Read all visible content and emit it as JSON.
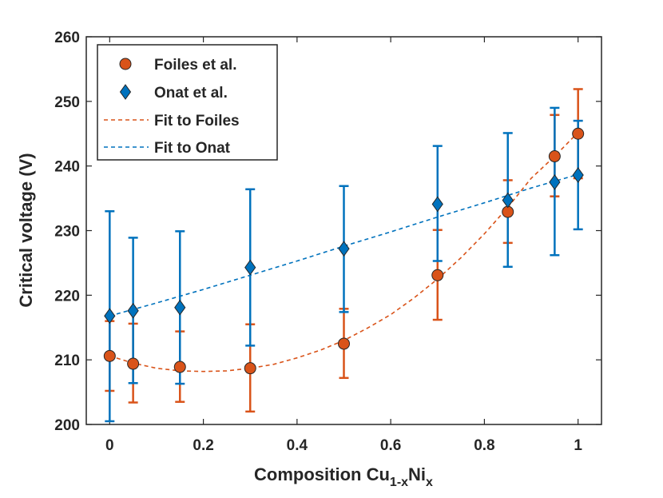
{
  "chart_data": {
    "type": "scatter",
    "title": "",
    "xlabel": "Composition Cu",
    "xlabel_sub1": "1-x",
    "xlabel_mid": "Ni",
    "xlabel_sub2": "x",
    "ylabel": "Critical voltage (V)",
    "xlim": [
      -0.05,
      1.05
    ],
    "ylim": [
      200,
      260
    ],
    "xticks": [
      0,
      0.2,
      0.4,
      0.6,
      0.8,
      1
    ],
    "xtick_labels": [
      "0",
      "0.2",
      "0.4",
      "0.6",
      "0.8",
      "1"
    ],
    "yticks": [
      200,
      210,
      220,
      230,
      240,
      250,
      260
    ],
    "ytick_labels": [
      "200",
      "210",
      "220",
      "230",
      "240",
      "250",
      "260"
    ],
    "legend_position": "top-left",
    "series": [
      {
        "name": "Foiles et al.",
        "marker": "circle",
        "color": "#D95319",
        "x": [
          0,
          0.05,
          0.15,
          0.3,
          0.5,
          0.7,
          0.85,
          0.95,
          1.0
        ],
        "y": [
          210.6,
          209.4,
          208.9,
          208.7,
          212.5,
          223.1,
          232.9,
          241.5,
          245.0
        ],
        "err_low": [
          205.2,
          203.4,
          203.5,
          202.0,
          207.2,
          216.2,
          228.1,
          235.3,
          238.1
        ],
        "err_high": [
          216.0,
          215.6,
          214.4,
          215.5,
          217.9,
          230.1,
          237.8,
          247.9,
          251.9
        ]
      },
      {
        "name": "Onat et al.",
        "marker": "diamond",
        "color": "#0072BD",
        "x": [
          0,
          0.05,
          0.15,
          0.3,
          0.5,
          0.7,
          0.85,
          0.95,
          1.0
        ],
        "y": [
          216.8,
          217.6,
          218.1,
          224.3,
          227.2,
          234.1,
          234.7,
          237.5,
          238.6
        ],
        "err_low": [
          200.5,
          206.4,
          206.3,
          212.2,
          217.4,
          225.3,
          224.4,
          226.2,
          230.2
        ],
        "err_high": [
          233.0,
          228.9,
          229.9,
          236.4,
          236.9,
          243.1,
          245.1,
          249.0,
          247.0
        ]
      }
    ],
    "fits": [
      {
        "name": "Fit to Foiles",
        "style": "dashed",
        "color": "#D95319",
        "x": [
          0,
          0.05,
          0.1,
          0.15,
          0.2,
          0.25,
          0.3,
          0.35,
          0.4,
          0.45,
          0.5,
          0.55,
          0.6,
          0.65,
          0.7,
          0.75,
          0.8,
          0.85,
          0.9,
          0.95,
          1.0
        ],
        "y": [
          210.6,
          209.5,
          208.7,
          208.3,
          208.2,
          208.3,
          208.7,
          209.3,
          210.3,
          211.5,
          213.0,
          214.9,
          217.0,
          219.6,
          222.5,
          225.8,
          229.5,
          233.6,
          238.1,
          241.5,
          245.2
        ]
      },
      {
        "name": "Fit to Onat",
        "style": "dashed",
        "color": "#0072BD",
        "x": [
          0,
          0.1,
          0.2,
          0.3,
          0.4,
          0.5,
          0.6,
          0.7,
          0.8,
          0.9,
          1.0
        ],
        "y": [
          216.8,
          218.8,
          220.9,
          223.1,
          225.3,
          227.6,
          229.8,
          232.1,
          234.3,
          236.6,
          238.7
        ]
      }
    ]
  }
}
